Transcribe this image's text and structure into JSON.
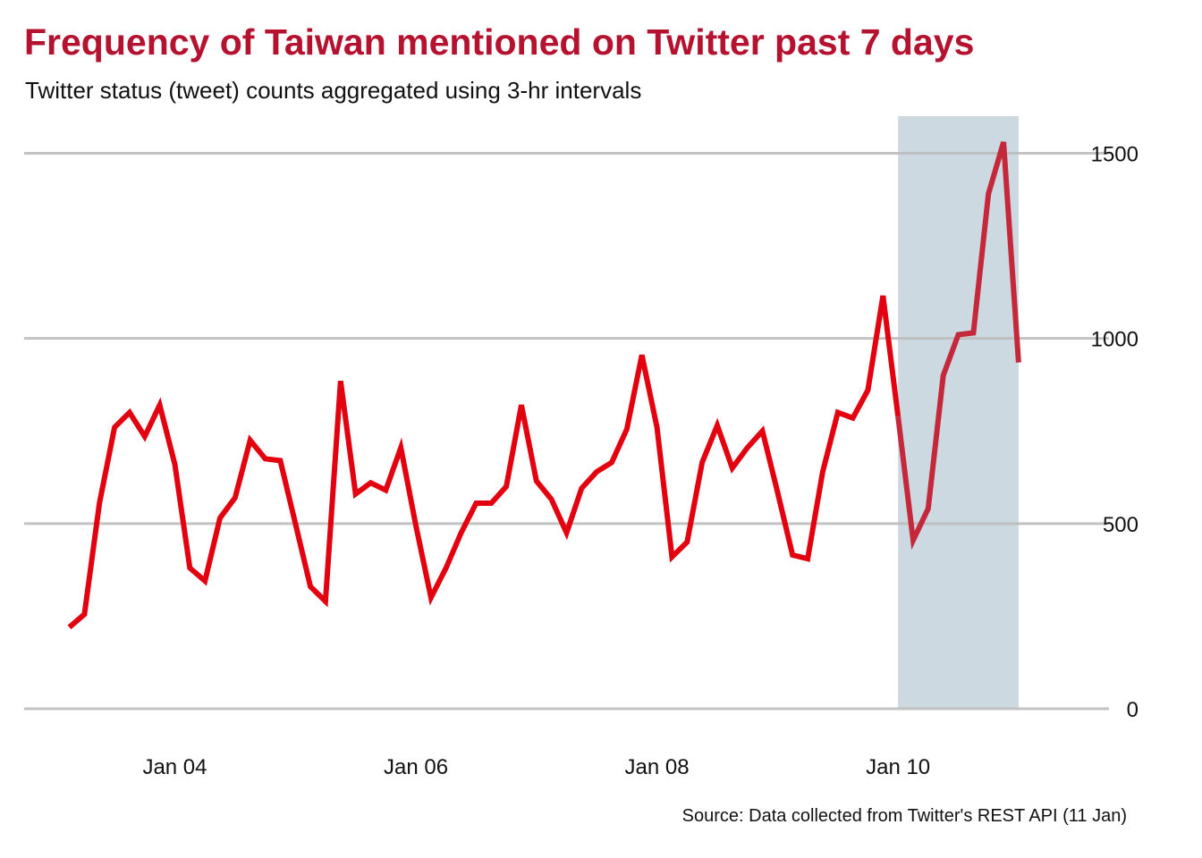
{
  "chart_data": {
    "type": "line",
    "title": "Frequency of Taiwan mentioned on Twitter past 7 days",
    "subtitle": "Twitter status (tweet) counts aggregated using 3-hr intervals",
    "source": "Source: Data collected from Twitter's REST API (11 Jan)",
    "xlabel": "",
    "ylabel": "",
    "x_tick_labels": [
      {
        "label": "Jan 04",
        "day": 4
      },
      {
        "label": "Jan 06",
        "day": 6
      },
      {
        "label": "Jan 08",
        "day": 8
      },
      {
        "label": "Jan 10",
        "day": 10
      }
    ],
    "y_ticks": [
      0,
      500,
      1000,
      1500
    ],
    "xlim": [
      2.75,
      11.75
    ],
    "ylim": [
      0,
      1600
    ],
    "y_axis_position": "right",
    "grid": "horizontal",
    "highlight_region": {
      "x_start": 10.0,
      "x_end": 11.0,
      "color": "#cdd9e0"
    },
    "colors": {
      "line": "#e3000f",
      "highlight_line": "#c4283a",
      "grid": "#bdbdbd",
      "title": "#b5122f"
    },
    "series": [
      {
        "x_start": 3.125,
        "x_step": 0.125,
        "values": [
          220,
          255,
          555,
          760,
          800,
          735,
          820,
          660,
          380,
          345,
          515,
          570,
          725,
          675,
          670,
          500,
          330,
          290,
          885,
          580,
          610,
          590,
          705,
          495,
          300,
          380,
          475,
          555,
          555,
          600,
          820,
          615,
          565,
          475,
          595,
          640,
          665,
          755,
          955,
          760,
          410,
          450,
          665,
          765,
          650,
          705,
          750,
          585,
          415,
          405,
          640,
          800,
          785,
          860,
          1115,
          790,
          455,
          540,
          900,
          1010,
          1015,
          1390,
          1530,
          935
        ]
      }
    ]
  }
}
